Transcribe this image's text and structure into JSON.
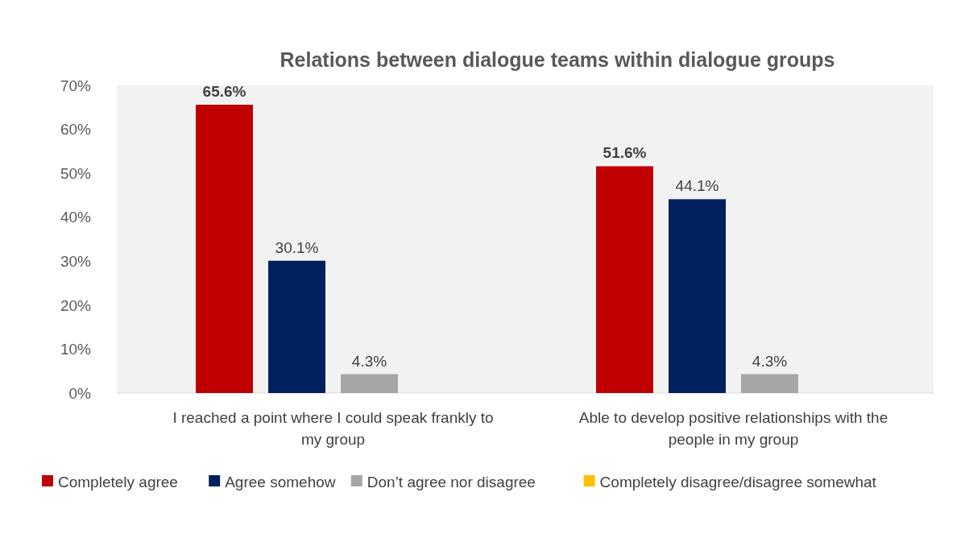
{
  "chart_data": {
    "type": "bar",
    "title": "Relations between dialogue teams within dialogue groups",
    "categories": [
      "I reached a point where I could speak frankly to my group",
      "Able to develop positive relationships with the people in my group"
    ],
    "series": [
      {
        "name": "Completely agree",
        "color": "#c00000",
        "values": [
          65.6,
          51.6
        ],
        "value_labels": [
          "65.6%",
          "51.6%"
        ]
      },
      {
        "name": "Agree somehow",
        "color": "#002060",
        "values": [
          30.1,
          44.1
        ],
        "value_labels": [
          "30.1%",
          "44.1%"
        ]
      },
      {
        "name": "Don’t agree nor disagree",
        "color": "#a6a6a6",
        "values": [
          4.3,
          4.3
        ],
        "value_labels": [
          "4.3%",
          "4.3%"
        ]
      },
      {
        "name": "Completely disagree/disagree somewhat",
        "color": "#ffc000",
        "values": [
          0,
          0
        ],
        "value_labels": [
          null,
          null
        ]
      }
    ],
    "ylim": [
      0,
      70
    ],
    "yticks": [
      {
        "value": 0,
        "label": "0%"
      },
      {
        "value": 10,
        "label": "10%"
      },
      {
        "value": 20,
        "label": "20%"
      },
      {
        "value": 30,
        "label": "30%"
      },
      {
        "value": 40,
        "label": "40%"
      },
      {
        "value": 50,
        "label": "50%"
      },
      {
        "value": 60,
        "label": "60%"
      },
      {
        "value": 70,
        "label": "70%"
      }
    ],
    "grid": false,
    "legend": "bottom"
  }
}
